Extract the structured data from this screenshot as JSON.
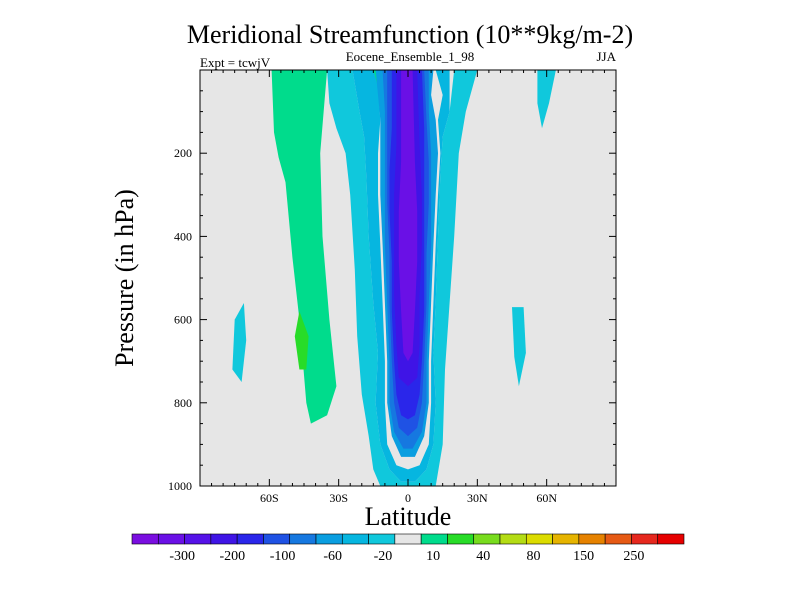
{
  "chart_data": {
    "type": "contour",
    "title": "Meridional Streamfunction (10**9kg/m-2)",
    "subtitle_center": "Eocene_Ensemble_1_98",
    "subtitle_left": "Expt = tcwjV",
    "subtitle_right": "JJA",
    "xlabel": "Latitude",
    "ylabel": "Pressure (in hPa)",
    "xlim": [
      -90,
      90
    ],
    "ylim": [
      1000,
      0
    ],
    "x_ticks": [
      {
        "value": -60,
        "label": "60S"
      },
      {
        "value": -30,
        "label": "30S"
      },
      {
        "value": 0,
        "label": "0"
      },
      {
        "value": 30,
        "label": "30N"
      },
      {
        "value": 60,
        "label": "60N"
      }
    ],
    "y_ticks": [
      {
        "value": 200,
        "label": "200"
      },
      {
        "value": 400,
        "label": "400"
      },
      {
        "value": 600,
        "label": "600"
      },
      {
        "value": 800,
        "label": "800"
      },
      {
        "value": 1000,
        "label": "1000"
      }
    ],
    "background_color": "#e6e6e6",
    "colorbar": {
      "colors": [
        "#7a0ee0",
        "#6a10e6",
        "#5512e8",
        "#3f14e6",
        "#2a26ea",
        "#1f52e4",
        "#1678e0",
        "#0a9ee0",
        "#06b6e0",
        "#10c8dc",
        "#e6e6e6",
        "#00dc8c",
        "#28dc28",
        "#78dc1e",
        "#b4dc14",
        "#dcdc00",
        "#e6b400",
        "#e68200",
        "#e65a14",
        "#e6281e",
        "#e60000"
      ],
      "labels": [
        "-300",
        "-200",
        "-100",
        "-60",
        "-20",
        "10",
        "40",
        "80",
        "150",
        "250"
      ]
    },
    "contour_regions": [
      {
        "level": "10",
        "color": "#00dc8c",
        "points": [
          [
            -45,
            0
          ],
          [
            -35,
            0
          ],
          [
            -38,
            200
          ],
          [
            -37,
            400
          ],
          [
            -34,
            600
          ],
          [
            -31,
            760
          ],
          [
            -35,
            830
          ],
          [
            -42,
            850
          ],
          [
            -44,
            800
          ],
          [
            -47,
            600
          ],
          [
            -50,
            450
          ],
          [
            -53,
            270
          ],
          [
            -56,
            210
          ],
          [
            -58,
            150
          ],
          [
            -59,
            0
          ]
        ]
      },
      {
        "level": "40",
        "color": "#28dc28",
        "points": [
          [
            -47,
            580
          ],
          [
            -43,
            640
          ],
          [
            -44,
            720
          ],
          [
            -47,
            720
          ],
          [
            -49,
            640
          ]
        ]
      },
      {
        "level": "-20",
        "color": "#10c8dc",
        "points": [
          [
            -35,
            0
          ],
          [
            -24,
            0
          ],
          [
            -21,
            100
          ],
          [
            -19,
            160
          ],
          [
            -18,
            260
          ],
          [
            -17,
            400
          ],
          [
            -15,
            560
          ],
          [
            -13,
            680
          ],
          [
            -14,
            800
          ],
          [
            -12,
            900
          ],
          [
            -8,
            960
          ],
          [
            -3,
            990
          ],
          [
            3,
            990
          ],
          [
            8,
            960
          ],
          [
            11,
            900
          ],
          [
            12,
            800
          ],
          [
            11,
            680
          ],
          [
            12,
            560
          ],
          [
            13,
            400
          ],
          [
            14,
            250
          ],
          [
            15,
            160
          ],
          [
            18,
            100
          ],
          [
            20,
            0
          ],
          [
            30,
            0
          ],
          [
            25,
            100
          ],
          [
            22,
            200
          ],
          [
            20,
            400
          ],
          [
            18,
            560
          ],
          [
            16,
            720
          ],
          [
            15,
            900
          ],
          [
            12,
            1000
          ],
          [
            -12,
            1000
          ],
          [
            -15,
            960
          ],
          [
            -17,
            880
          ],
          [
            -20,
            780
          ],
          [
            -22,
            640
          ],
          [
            -23,
            480
          ],
          [
            -25,
            300
          ],
          [
            -27,
            200
          ],
          [
            -31,
            140
          ],
          [
            -34,
            80
          ]
        ]
      },
      {
        "level": "-20",
        "color": "#10c8dc",
        "points": [
          [
            -71,
            560
          ],
          [
            -75,
            600
          ],
          [
            -76,
            720
          ],
          [
            -72,
            750
          ],
          [
            -70,
            650
          ]
        ]
      },
      {
        "level": "-20",
        "color": "#10c8dc",
        "points": [
          [
            45,
            570
          ],
          [
            50,
            570
          ],
          [
            51,
            680
          ],
          [
            48,
            760
          ],
          [
            46,
            690
          ]
        ]
      },
      {
        "level": "-20",
        "color": "#10c8dc",
        "points": [
          [
            56,
            0
          ],
          [
            64,
            0
          ],
          [
            61,
            80
          ],
          [
            58,
            140
          ],
          [
            56,
            80
          ]
        ]
      },
      {
        "level": "10",
        "color": "#00dc8c",
        "points": [
          [
            -18,
            0
          ],
          [
            -12,
            0
          ],
          [
            -13,
            40
          ],
          [
            -16,
            60
          ]
        ]
      },
      {
        "level": "-60",
        "color": "#06b6e0",
        "points": [
          [
            -24,
            0
          ],
          [
            -15,
            0
          ],
          [
            -13,
            40
          ],
          [
            -12,
            120
          ],
          [
            -13,
            200
          ],
          [
            -13,
            300
          ],
          [
            -12,
            420
          ],
          [
            -11,
            560
          ],
          [
            -10,
            700
          ],
          [
            -10,
            800
          ],
          [
            -9,
            900
          ],
          [
            -5,
            950
          ],
          [
            0,
            960
          ],
          [
            5,
            950
          ],
          [
            9,
            900
          ],
          [
            10,
            800
          ],
          [
            10,
            700
          ],
          [
            11,
            560
          ],
          [
            12,
            420
          ],
          [
            13,
            300
          ],
          [
            14,
            200
          ],
          [
            13,
            120
          ],
          [
            15,
            60
          ],
          [
            12,
            0
          ],
          [
            18,
            0
          ],
          [
            18,
            100
          ],
          [
            15,
            160
          ],
          [
            14,
            250
          ],
          [
            13,
            400
          ],
          [
            12,
            560
          ],
          [
            11,
            680
          ],
          [
            12,
            800
          ],
          [
            11,
            900
          ],
          [
            8,
            960
          ],
          [
            3,
            990
          ],
          [
            -3,
            990
          ],
          [
            -8,
            960
          ],
          [
            -12,
            900
          ],
          [
            -14,
            800
          ],
          [
            -13,
            680
          ],
          [
            -15,
            560
          ],
          [
            -17,
            400
          ],
          [
            -18,
            260
          ],
          [
            -19,
            160
          ],
          [
            -21,
            100
          ]
        ]
      },
      {
        "level": "-100",
        "color": "#0a9ee0",
        "points": [
          [
            -14,
            0
          ],
          [
            11,
            0
          ],
          [
            10,
            60
          ],
          [
            12,
            120
          ],
          [
            13,
            200
          ],
          [
            12,
            300
          ],
          [
            11,
            420
          ],
          [
            10,
            560
          ],
          [
            9,
            700
          ],
          [
            9,
            800
          ],
          [
            7,
            880
          ],
          [
            3,
            930
          ],
          [
            -3,
            930
          ],
          [
            -7,
            880
          ],
          [
            -9,
            800
          ],
          [
            -9,
            700
          ],
          [
            -10,
            560
          ],
          [
            -11,
            420
          ],
          [
            -12,
            300
          ],
          [
            -12,
            200
          ],
          [
            -12,
            120
          ],
          [
            -13,
            60
          ]
        ]
      },
      {
        "level": "-140",
        "color": "#1678e0",
        "points": [
          [
            -11,
            0
          ],
          [
            9,
            0
          ],
          [
            9,
            100
          ],
          [
            10,
            200
          ],
          [
            10,
            300
          ],
          [
            10,
            420
          ],
          [
            9,
            560
          ],
          [
            8,
            700
          ],
          [
            8,
            800
          ],
          [
            6,
            870
          ],
          [
            2,
            910
          ],
          [
            -2,
            910
          ],
          [
            -6,
            870
          ],
          [
            -8,
            800
          ],
          [
            -8,
            700
          ],
          [
            -9,
            560
          ],
          [
            -10,
            420
          ],
          [
            -10,
            300
          ],
          [
            -10,
            200
          ],
          [
            -10,
            100
          ]
        ]
      },
      {
        "level": "-180",
        "color": "#1f52e4",
        "points": [
          [
            -9,
            0
          ],
          [
            7,
            0
          ],
          [
            8,
            120
          ],
          [
            9,
            220
          ],
          [
            9,
            320
          ],
          [
            8,
            440
          ],
          [
            8,
            560
          ],
          [
            7,
            700
          ],
          [
            6,
            800
          ],
          [
            4,
            860
          ],
          [
            0,
            880
          ],
          [
            -4,
            860
          ],
          [
            -6,
            800
          ],
          [
            -7,
            700
          ],
          [
            -8,
            560
          ],
          [
            -8,
            440
          ],
          [
            -9,
            320
          ],
          [
            -9,
            220
          ],
          [
            -9,
            120
          ]
        ]
      },
      {
        "level": "-220",
        "color": "#2a26ea",
        "points": [
          [
            -7,
            0
          ],
          [
            6,
            0
          ],
          [
            7,
            140
          ],
          [
            7,
            240
          ],
          [
            7,
            340
          ],
          [
            7,
            460
          ],
          [
            7,
            580
          ],
          [
            6,
            700
          ],
          [
            5,
            780
          ],
          [
            3,
            830
          ],
          [
            0,
            840
          ],
          [
            -3,
            830
          ],
          [
            -5,
            780
          ],
          [
            -6,
            700
          ],
          [
            -7,
            580
          ],
          [
            -7,
            460
          ],
          [
            -8,
            340
          ],
          [
            -8,
            240
          ],
          [
            -7,
            140
          ]
        ]
      },
      {
        "level": "-260",
        "color": "#3f14e6",
        "points": [
          [
            -5,
            0
          ],
          [
            4,
            0
          ],
          [
            5,
            180
          ],
          [
            6,
            300
          ],
          [
            6,
            420
          ],
          [
            5,
            540
          ],
          [
            5,
            660
          ],
          [
            4,
            740
          ],
          [
            0,
            760
          ],
          [
            -4,
            740
          ],
          [
            -5,
            660
          ],
          [
            -6,
            540
          ],
          [
            -6,
            420
          ],
          [
            -6,
            300
          ],
          [
            -5,
            180
          ]
        ]
      },
      {
        "level": "-300",
        "color": "#6a10e6",
        "points": [
          [
            -3,
            0
          ],
          [
            2,
            0
          ],
          [
            3,
            220
          ],
          [
            4,
            340
          ],
          [
            4,
            460
          ],
          [
            3,
            580
          ],
          [
            2,
            680
          ],
          [
            0,
            700
          ],
          [
            -2,
            680
          ],
          [
            -3,
            580
          ],
          [
            -4,
            460
          ],
          [
            -4,
            340
          ],
          [
            -3,
            220
          ]
        ]
      }
    ]
  }
}
